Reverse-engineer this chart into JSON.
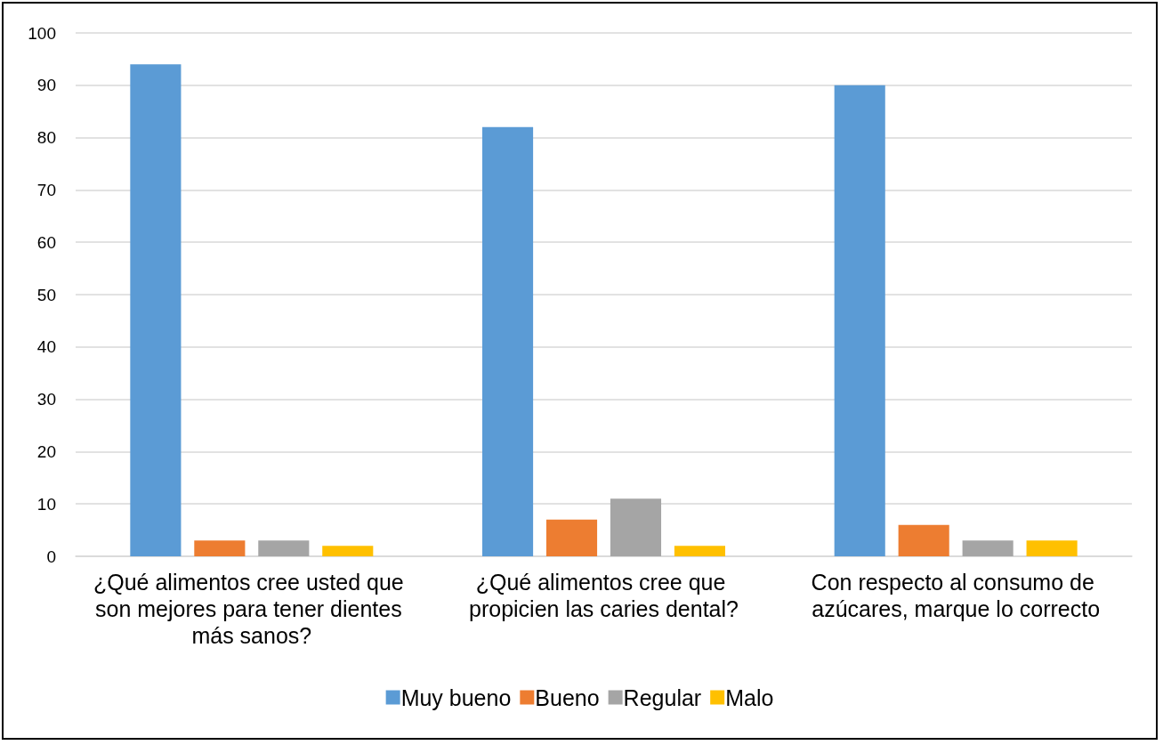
{
  "chart_data": {
    "type": "bar",
    "categories": [
      "¿Qué alimentos cree usted que son mejores para tener dientes más sanos?",
      "¿Qué alimentos cree que propicien las caries dental?",
      "Con respecto al consumo de azúcares, marque lo correcto"
    ],
    "series": [
      {
        "name": "Muy bueno",
        "color": "#5b9bd5",
        "values": [
          94,
          82,
          90
        ]
      },
      {
        "name": "Bueno",
        "color": "#ed7d31",
        "values": [
          3,
          7,
          6
        ]
      },
      {
        "name": "Regular",
        "color": "#a5a5a5",
        "values": [
          3,
          11,
          3
        ]
      },
      {
        "name": "Malo",
        "color": "#ffc000",
        "values": [
          2,
          2,
          3
        ]
      }
    ],
    "ylim": [
      0,
      100
    ],
    "yticks": [
      0,
      10,
      20,
      30,
      40,
      50,
      60,
      70,
      80,
      90,
      100
    ],
    "grid": "y",
    "legend": "bottom"
  }
}
